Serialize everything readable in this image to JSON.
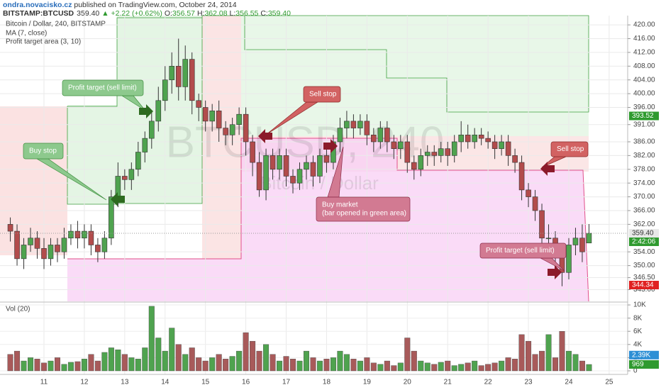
{
  "header": {
    "author": "ondra.novacisko.cz",
    "published": "published on TradingView.com, October 24, 2014",
    "symbol": "BITSTAMP:BTCUSD",
    "last": "359.40",
    "change": "▲ +2.22 (+0.62%)",
    "ohlc": [
      {
        "label": "O:",
        "value": "356.57"
      },
      {
        "label": "H:",
        "value": "362.08"
      },
      {
        "label": "L:",
        "value": "356.55"
      },
      {
        "label": "C:",
        "value": "359.40"
      }
    ]
  },
  "chart_data": [
    {
      "type": "candlestick",
      "title": "Bitcoin / Dollar, 240, BITSTAMP",
      "indicators": [
        "MA (7, close)",
        "Profit target area (3, 10)"
      ],
      "watermark": [
        "BTCUSD, 240",
        "Bitcoin / Dollar"
      ],
      "up_color": "#4fa34f",
      "down_color": "#b24c4c",
      "grid": true,
      "open": [
        362,
        360,
        352,
        356,
        358,
        355,
        352,
        356,
        354,
        358,
        360,
        358,
        360,
        356,
        354,
        358,
        370,
        376,
        375,
        378,
        383,
        387,
        392,
        398,
        404,
        408,
        402,
        410,
        398,
        396,
        392,
        395,
        390,
        388,
        391,
        394,
        386,
        380,
        372,
        382,
        378,
        382,
        376,
        374,
        378,
        380,
        376,
        382,
        380,
        386,
        390,
        392,
        390,
        392,
        388,
        386,
        390,
        386,
        384,
        386,
        380,
        378,
        382,
        383,
        382,
        384,
        382,
        386,
        388,
        386,
        388,
        387,
        386,
        384,
        386,
        382,
        380,
        372,
        370,
        366,
        358,
        358,
        354,
        348,
        356,
        358,
        356.57
      ],
      "high": [
        364,
        362,
        358,
        361,
        360,
        358,
        358,
        358,
        361,
        362,
        363,
        362,
        362,
        358,
        360,
        372,
        380,
        378,
        380,
        386,
        389,
        395,
        402,
        408,
        412,
        416,
        414,
        412,
        400,
        398,
        397,
        398,
        392,
        393,
        396,
        396,
        388,
        383,
        384,
        384,
        384,
        384,
        378,
        380,
        382,
        382,
        384,
        384,
        388,
        393,
        395,
        394,
        394,
        394,
        390,
        392,
        392,
        388,
        388,
        388,
        382,
        384,
        385,
        385,
        386,
        386,
        388,
        392,
        391,
        390,
        390,
        389,
        388,
        388,
        388,
        384,
        382,
        374,
        372,
        368,
        362,
        360,
        356,
        358,
        361,
        362,
        362.08
      ],
      "low": [
        357,
        350,
        349,
        354,
        352,
        349,
        350,
        351,
        352,
        356,
        355,
        355,
        353,
        351,
        352,
        356,
        367,
        372,
        372,
        376,
        380,
        384,
        389,
        395,
        400,
        398,
        398,
        394,
        392,
        389,
        389,
        386,
        385,
        385,
        388,
        382,
        376,
        370,
        369,
        375,
        375,
        373,
        371,
        372,
        375,
        373,
        374,
        377,
        378,
        383,
        387,
        387,
        388,
        385,
        383,
        384,
        383,
        381,
        381,
        377,
        375,
        376,
        379,
        379,
        380,
        379,
        380,
        383,
        384,
        384,
        385,
        384,
        381,
        382,
        379,
        377,
        369,
        367,
        363,
        354,
        355,
        350,
        344,
        346,
        353,
        351,
        356.55
      ],
      "close": [
        360,
        352,
        356,
        358,
        355,
        352,
        356,
        354,
        358,
        360,
        358,
        360,
        356,
        354,
        358,
        370,
        376,
        375,
        378,
        383,
        387,
        392,
        398,
        404,
        408,
        402,
        410,
        398,
        396,
        392,
        395,
        390,
        388,
        391,
        394,
        386,
        380,
        372,
        382,
        378,
        382,
        376,
        374,
        378,
        380,
        376,
        382,
        380,
        386,
        390,
        392,
        390,
        392,
        388,
        386,
        390,
        386,
        384,
        386,
        380,
        378,
        382,
        383,
        382,
        384,
        382,
        386,
        388,
        386,
        388,
        387,
        386,
        384,
        386,
        382,
        380,
        372,
        370,
        366,
        358,
        358,
        354,
        348,
        356,
        358,
        354,
        359.4
      ],
      "xlim": [
        -1.535,
        91.75
      ],
      "xticks": [
        {
          "value": 5,
          "label": "11"
        },
        {
          "value": 11,
          "label": "12"
        },
        {
          "value": 17,
          "label": "13"
        },
        {
          "value": 23,
          "label": "14"
        },
        {
          "value": 29,
          "label": "15"
        },
        {
          "value": 35,
          "label": "16"
        },
        {
          "value": 41,
          "label": "17"
        },
        {
          "value": 47,
          "label": "18"
        },
        {
          "value": 53,
          "label": "19"
        },
        {
          "value": 59,
          "label": "20"
        },
        {
          "value": 65,
          "label": "21"
        },
        {
          "value": 71,
          "label": "22"
        },
        {
          "value": 77,
          "label": "23"
        },
        {
          "value": 83,
          "label": "24"
        },
        {
          "value": 89,
          "label": "25"
        }
      ],
      "ylim": [
        339.6,
        422.7
      ],
      "yticks": [
        {
          "value": 420,
          "label": "420.00"
        },
        {
          "value": 416,
          "label": "416.00"
        },
        {
          "value": 412,
          "label": "412.00"
        },
        {
          "value": 408,
          "label": "408.00"
        },
        {
          "value": 404,
          "label": "404.00"
        },
        {
          "value": 400,
          "label": "400.00"
        },
        {
          "value": 396,
          "label": "396.00"
        },
        {
          "value": 391,
          "label": "391.00"
        },
        {
          "value": 386,
          "label": "386.00"
        },
        {
          "value": 382,
          "label": "382.00"
        },
        {
          "value": 378,
          "label": "378.00"
        },
        {
          "value": 374,
          "label": "374.00"
        },
        {
          "value": 370,
          "label": "370.00"
        },
        {
          "value": 366,
          "label": "366.00"
        },
        {
          "value": 362,
          "label": "362.00"
        },
        {
          "value": 354,
          "label": "354.00"
        },
        {
          "value": 350,
          "label": "350.00"
        },
        {
          "value": 346.5,
          "label": "346.50"
        },
        {
          "value": 343,
          "label": "343.00"
        }
      ],
      "price_labels": [
        {
          "value": 393.52,
          "label": "393.52",
          "color": "#2f9a2f",
          "text_color": "#ffffff"
        },
        {
          "value": 359.4,
          "label": "359.40",
          "color": "#e8e8e8",
          "text_color": "#333333"
        },
        {
          "value": 344.34,
          "label": "344.34",
          "color": "#e02020",
          "text_color": "#ffffff"
        }
      ],
      "countdown": "2:42:06",
      "annotations": [
        [
          "Buy stop"
        ],
        [
          "Profit target (sell limit)"
        ],
        [
          "Sell stop"
        ],
        [
          "Buy market",
          "(bar opened in green area)"
        ],
        [
          "Sell stop"
        ],
        [
          "Profit target (sell limit)"
        ]
      ]
    },
    {
      "type": "volume",
      "title": "Vol (20)",
      "values": [
        2500,
        3000,
        1500,
        2000,
        1800,
        1200,
        1500,
        2000,
        1000,
        1300,
        1400,
        1800,
        2500,
        1500,
        2800,
        3500,
        3200,
        2500,
        2000,
        1800,
        3500,
        9800,
        5000,
        3000,
        6500,
        4000,
        2500,
        3500,
        2000,
        1500,
        2000,
        2500,
        1800,
        2200,
        3000,
        5800,
        4500,
        3000,
        4000,
        2500,
        1500,
        2200,
        1800,
        1500,
        3000,
        2000,
        1500,
        1800,
        2000,
        3000,
        2500,
        1800,
        1500,
        2000,
        1200,
        1000,
        1500,
        800,
        1200,
        5000,
        3000,
        1500,
        1200,
        1000,
        1300,
        1500,
        800,
        1000,
        1200,
        1500,
        800,
        1000,
        1200,
        1500,
        2000,
        1800,
        5500,
        4500,
        2500,
        3000,
        5500,
        2000,
        6000,
        3000,
        2500,
        1500,
        969
      ],
      "up_color": "#4fa34f",
      "down_color": "#a85a5a",
      "ylim": [
        -540,
        10220
      ],
      "yticks": [
        0,
        {
          "value": 2000,
          "label": "2K"
        },
        {
          "value": 4000,
          "label": "4K"
        },
        {
          "value": 6000,
          "label": "6K"
        },
        {
          "value": 8000,
          "label": "8K"
        },
        {
          "value": 10000,
          "label": "10K"
        }
      ],
      "axis_labels": [
        {
          "value": 2390,
          "label": "2.39K",
          "color": "#2d8fd5"
        },
        {
          "value": 969,
          "label": "969",
          "color": "#2f9a2f"
        }
      ]
    }
  ]
}
